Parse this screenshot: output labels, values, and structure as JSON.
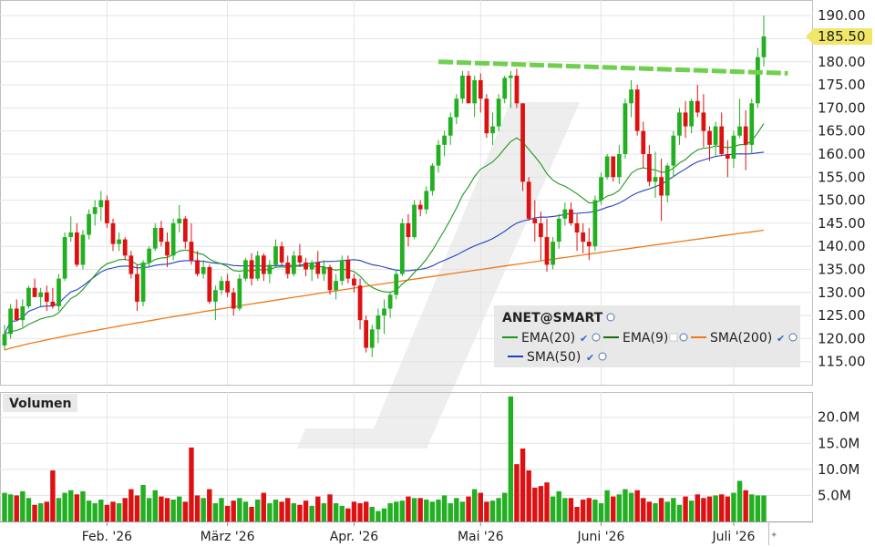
{
  "chart_data": {
    "type": "candlestick",
    "symbol": "ANET@SMART",
    "last_price_label": "185.50",
    "price_axis": {
      "range": [
        110,
        193
      ],
      "ticks": [
        "115.00",
        "120.00",
        "125.00",
        "130.00",
        "135.00",
        "140.00",
        "145.00",
        "150.00",
        "155.00",
        "160.00",
        "165.00",
        "170.00",
        "175.00",
        "180.00",
        "185.00",
        "190.00"
      ]
    },
    "volume_axis": {
      "title": "Volumen",
      "range": [
        0,
        24.5
      ],
      "unit": "M",
      "ticks": [
        "5.0M",
        "10.0M",
        "15.0M",
        "20.0M"
      ]
    },
    "x_ticks": [
      {
        "label": "Feb. '26",
        "index": 17
      },
      {
        "label": "März '26",
        "index": 37
      },
      {
        "label": "Apr. '26",
        "index": 58
      },
      {
        "label": "Mai '26",
        "index": 79
      },
      {
        "label": "Juni '26",
        "index": 99
      },
      {
        "label": "Juli '26",
        "index": 121
      }
    ],
    "legend": [
      {
        "label": "EMA(20)",
        "color": "#1a9a1a"
      },
      {
        "label": "EMA(9)",
        "color": "#136d13"
      },
      {
        "label": "SMA(200)",
        "color": "#f07818"
      },
      {
        "label": "SMA(50)",
        "color": "#2040c0"
      }
    ],
    "colors": {
      "up": "#22b022",
      "down": "#dd1111",
      "trendline": "#6fd04f",
      "last_price_tag": "#f0e66a"
    },
    "trendline": {
      "from": {
        "index": 72,
        "price": 180.0
      },
      "to": {
        "index": 130,
        "price": 177.5
      }
    },
    "candles": [
      [
        118.5,
        123,
        117.5,
        121
      ],
      [
        121,
        127.5,
        120,
        126.5
      ],
      [
        126.5,
        128.5,
        124,
        124
      ],
      [
        124,
        128.5,
        122.5,
        127
      ],
      [
        127,
        131.5,
        126.5,
        131
      ],
      [
        131,
        133,
        129,
        129
      ],
      [
        129,
        131,
        127,
        130
      ],
      [
        130,
        131.5,
        126,
        128
      ],
      [
        128,
        131,
        126.5,
        127
      ],
      [
        127,
        134,
        126,
        133
      ],
      [
        133,
        143,
        132.5,
        142
      ],
      [
        142,
        146.5,
        141,
        143
      ],
      [
        143,
        145,
        135.5,
        136
      ],
      [
        136,
        143.5,
        135,
        142.5
      ],
      [
        142.5,
        148,
        141.5,
        147
      ],
      [
        147,
        150,
        144.5,
        148.5
      ],
      [
        148.5,
        152,
        145.5,
        150
      ],
      [
        150,
        151,
        144,
        145
      ],
      [
        145,
        146,
        139,
        140.5
      ],
      [
        140.5,
        143,
        139,
        141.5
      ],
      [
        141.5,
        142,
        137,
        138
      ],
      [
        138,
        139,
        133,
        134
      ],
      [
        134,
        136,
        126,
        128
      ],
      [
        128,
        137,
        127,
        136.5
      ],
      [
        136.5,
        140,
        135.5,
        139.5
      ],
      [
        139.5,
        145,
        139,
        144
      ],
      [
        144,
        145.5,
        140,
        141
      ],
      [
        141,
        143,
        135.5,
        138
      ],
      [
        138,
        146,
        137,
        145
      ],
      [
        145,
        149,
        143,
        146
      ],
      [
        146,
        146.5,
        139.5,
        141
      ],
      [
        141,
        145,
        136,
        137
      ],
      [
        137,
        139,
        133.5,
        134
      ],
      [
        134,
        137,
        133,
        135.5
      ],
      [
        135.5,
        136,
        127.5,
        128
      ],
      [
        128,
        131.5,
        124,
        130.5
      ],
      [
        130.5,
        133.5,
        129.5,
        132.5
      ],
      [
        132.5,
        134,
        129,
        130
      ],
      [
        130,
        131,
        125,
        126.5
      ],
      [
        126.5,
        134,
        126,
        133
      ],
      [
        133,
        137.5,
        132.5,
        137
      ],
      [
        137,
        138.5,
        131.5,
        133
      ],
      [
        133,
        139,
        132.5,
        138
      ],
      [
        138,
        138.5,
        132.5,
        134
      ],
      [
        134,
        137,
        132,
        136
      ],
      [
        136,
        141.5,
        135.5,
        140
      ],
      [
        140,
        141,
        136,
        136.5
      ],
      [
        136.5,
        138,
        133,
        134
      ],
      [
        134,
        139,
        133.5,
        138
      ],
      [
        138,
        140.5,
        135.5,
        136.5
      ],
      [
        136.5,
        137.5,
        133.5,
        135
      ],
      [
        135,
        137,
        132.5,
        136.5
      ],
      [
        136.5,
        139,
        133,
        134
      ],
      [
        134,
        137,
        132.5,
        135.5
      ],
      [
        135.5,
        136,
        129.5,
        130.5
      ],
      [
        130.5,
        134,
        128.5,
        132.5
      ],
      [
        132.5,
        138,
        131.5,
        137
      ],
      [
        137,
        138,
        132,
        133
      ],
      [
        133,
        134,
        130,
        131.5
      ],
      [
        131.5,
        133,
        122,
        124
      ],
      [
        124,
        125,
        117,
        118
      ],
      [
        118,
        123,
        116,
        122
      ],
      [
        122,
        126.5,
        119,
        125
      ],
      [
        125,
        128.5,
        121,
        126.5
      ],
      [
        126.5,
        130,
        124.5,
        129.5
      ],
      [
        129.5,
        135,
        128.5,
        134
      ],
      [
        134,
        146,
        133.5,
        145
      ],
      [
        145,
        147,
        140,
        142
      ],
      [
        142,
        150,
        141.5,
        149
      ],
      [
        149,
        150,
        146.5,
        148
      ],
      [
        148,
        153,
        147,
        152
      ],
      [
        152,
        158,
        151,
        157.5
      ],
      [
        157.5,
        163,
        156,
        162
      ],
      [
        162,
        165,
        159.5,
        164
      ],
      [
        164,
        169,
        162,
        168
      ],
      [
        168,
        173,
        166.5,
        172
      ],
      [
        172,
        178,
        171,
        177
      ],
      [
        177,
        178,
        171,
        171
      ],
      [
        171,
        177,
        168,
        176
      ],
      [
        176,
        177.5,
        169,
        172
      ],
      [
        172,
        173,
        163.5,
        164.5
      ],
      [
        164.5,
        169,
        162,
        166
      ],
      [
        166,
        173,
        165,
        172
      ],
      [
        172,
        177,
        171,
        176.5
      ],
      [
        176.5,
        178,
        170,
        177
      ],
      [
        177,
        178.5,
        170,
        171
      ],
      [
        171,
        171,
        152,
        154
      ],
      [
        154,
        155,
        145.5,
        146
      ],
      [
        146,
        150,
        141,
        145
      ],
      [
        145,
        147.5,
        137,
        142
      ],
      [
        142,
        146,
        134.5,
        136
      ],
      [
        136,
        142,
        135,
        141
      ],
      [
        141,
        147,
        139.5,
        146
      ],
      [
        146,
        149.5,
        144.5,
        148
      ],
      [
        148,
        149.5,
        144.5,
        145
      ],
      [
        145,
        147,
        139,
        143
      ],
      [
        143,
        145,
        138.5,
        141
      ],
      [
        141,
        144,
        137,
        140
      ],
      [
        140,
        151,
        139,
        150
      ],
      [
        150,
        156,
        149,
        155
      ],
      [
        155,
        160,
        154.5,
        159.5
      ],
      [
        159.5,
        159.5,
        154,
        155
      ],
      [
        155,
        162,
        153.5,
        160
      ],
      [
        160,
        172,
        159,
        171
      ],
      [
        171,
        176,
        168,
        174
      ],
      [
        174,
        175,
        164,
        165
      ],
      [
        165,
        167,
        157,
        160
      ],
      [
        160,
        162,
        153,
        154
      ],
      [
        154,
        160.5,
        150.5,
        155
      ],
      [
        155,
        159,
        145.5,
        151
      ],
      [
        151,
        158,
        149.5,
        157.5
      ],
      [
        157.5,
        165,
        155,
        164
      ],
      [
        164,
        170,
        162,
        169
      ],
      [
        169,
        171.5,
        163.5,
        166
      ],
      [
        166,
        172,
        164.5,
        171.5
      ],
      [
        171.5,
        175,
        168,
        169
      ],
      [
        169,
        173,
        161.5,
        165
      ],
      [
        165,
        166,
        158.5,
        162
      ],
      [
        162,
        167,
        159.5,
        166
      ],
      [
        166,
        169,
        159.5,
        160
      ],
      [
        160,
        163,
        155,
        159
      ],
      [
        159,
        165,
        157,
        164
      ],
      [
        164,
        172,
        163.5,
        166
      ],
      [
        166,
        169.5,
        156.5,
        162
      ],
      [
        162,
        172,
        160,
        171
      ],
      [
        171,
        183,
        170,
        181
      ],
      [
        181,
        190,
        179,
        185.5
      ]
    ],
    "volume_m": [
      5.5,
      5.2,
      5.0,
      5.8,
      4.5,
      3.2,
      3.5,
      3.8,
      9.8,
      4.5,
      5.5,
      6.0,
      5.2,
      5.8,
      4.0,
      3.5,
      4.2,
      3.2,
      3.8,
      3.5,
      4.5,
      6.2,
      5.0,
      7.0,
      4.5,
      6.0,
      4.8,
      4.5,
      4.2,
      4.8,
      3.8,
      14.2,
      5.0,
      4.5,
      6.2,
      3.5,
      4.5,
      3.0,
      4.0,
      4.5,
      3.8,
      2.8,
      4.2,
      5.5,
      3.5,
      4.2,
      3.8,
      4.5,
      3.5,
      3.2,
      4.0,
      3.0,
      4.8,
      3.5,
      5.2,
      3.5,
      3.0,
      2.5,
      3.8,
      3.5,
      3.8,
      2.8,
      2.0,
      2.5,
      3.5,
      3.8,
      4.0,
      4.8,
      4.5,
      4.5,
      4.2,
      3.8,
      4.2,
      5.0,
      3.5,
      4.5,
      3.8,
      4.8,
      6.2,
      5.5,
      3.8,
      4.0,
      4.5,
      5.5,
      24.0,
      11.0,
      14.0,
      9.8,
      6.5,
      6.8,
      7.5,
      4.8,
      5.8,
      4.5,
      4.5,
      2.8,
      4.2,
      4.5,
      4.2,
      3.5,
      6.0,
      4.8,
      5.2,
      6.2,
      5.5,
      6.0,
      4.5,
      3.8,
      3.5,
      4.5,
      3.8,
      4.5,
      3.2,
      4.8,
      4.0,
      5.2,
      4.5,
      4.8,
      5.0,
      5.2,
      4.8,
      5.5,
      7.8,
      6.0,
      5.2,
      5.0,
      5.0
    ]
  }
}
